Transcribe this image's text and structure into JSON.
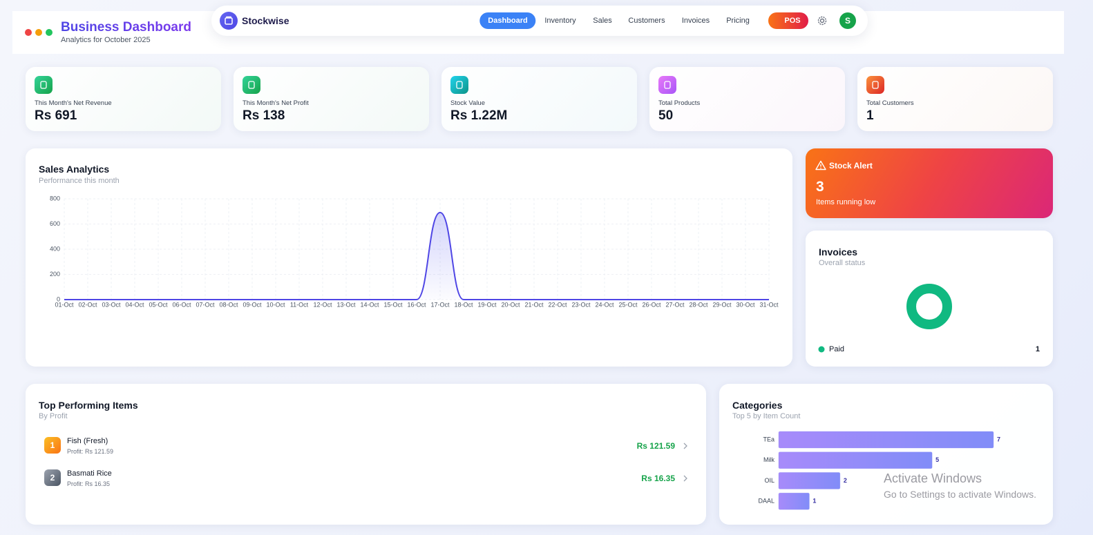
{
  "header": {
    "title": "Business Dashboard",
    "subtitle": "Analytics for October 2025"
  },
  "nav": {
    "brand": "Stockwise",
    "links": [
      "Dashboard",
      "Inventory",
      "Sales",
      "Customers",
      "Invoices",
      "Pricing"
    ],
    "pos": "POS",
    "avatar": "S"
  },
  "stats": [
    {
      "label": "This Month's Net Revenue",
      "value": "Rs 691"
    },
    {
      "label": "This Month's Net Profit",
      "value": "Rs 138"
    },
    {
      "label": "Stock Value",
      "value": "Rs 1.22M"
    },
    {
      "label": "Total Products",
      "value": "50"
    },
    {
      "label": "Total Customers",
      "value": "1"
    }
  ],
  "stock_alert": {
    "title": "Stock Alert",
    "count": "3",
    "text": "Items running low"
  },
  "top_items": {
    "title": "Top Performing Items",
    "subtitle": "By Profit",
    "items": [
      {
        "rank": "1",
        "name": "Fish (Fresh)",
        "detail": "Profit: Rs 121.59",
        "amount": "Rs 121.59"
      },
      {
        "rank": "2",
        "name": "Basmati Rice",
        "detail": "Profit: Rs 16.35",
        "amount": "Rs 16.35"
      }
    ]
  },
  "chart_data": [
    {
      "type": "line",
      "title": "Sales Analytics",
      "subtitle": "Performance this month",
      "categories": [
        "01-Oct",
        "02-Oct",
        "03-Oct",
        "04-Oct",
        "05-Oct",
        "06-Oct",
        "07-Oct",
        "08-Oct",
        "09-Oct",
        "10-Oct",
        "11-Oct",
        "12-Oct",
        "13-Oct",
        "14-Oct",
        "15-Oct",
        "16-Oct",
        "17-Oct",
        "18-Oct",
        "19-Oct",
        "20-Oct",
        "21-Oct",
        "22-Oct",
        "23-Oct",
        "24-Oct",
        "25-Oct",
        "26-Oct",
        "27-Oct",
        "28-Oct",
        "29-Oct",
        "30-Oct",
        "31-Oct"
      ],
      "values": [
        0,
        0,
        0,
        0,
        0,
        0,
        0,
        0,
        0,
        0,
        0,
        0,
        0,
        0,
        0,
        0,
        691,
        0,
        0,
        0,
        0,
        0,
        0,
        0,
        0,
        0,
        0,
        0,
        0,
        0,
        0
      ],
      "color": "#4f46e5",
      "ylim": [
        0,
        800
      ],
      "yticks": [
        0,
        200,
        400,
        600,
        800
      ],
      "grid": true
    },
    {
      "type": "donut",
      "title": "Invoices",
      "subtitle": "Overall status",
      "categories": [
        "Paid"
      ],
      "values": [
        1
      ],
      "colors": [
        "#10b981"
      ]
    },
    {
      "type": "bar",
      "orientation": "horizontal",
      "title": "Categories",
      "subtitle": "Top 5 by Item Count",
      "categories": [
        "TEa",
        "Milk",
        "OIL",
        "DAAL"
      ],
      "values": [
        7,
        5,
        2,
        1
      ],
      "color": "#8b8cf6"
    }
  ],
  "watermark": {
    "title": "Activate Windows",
    "text": "Go to Settings to activate Windows."
  }
}
